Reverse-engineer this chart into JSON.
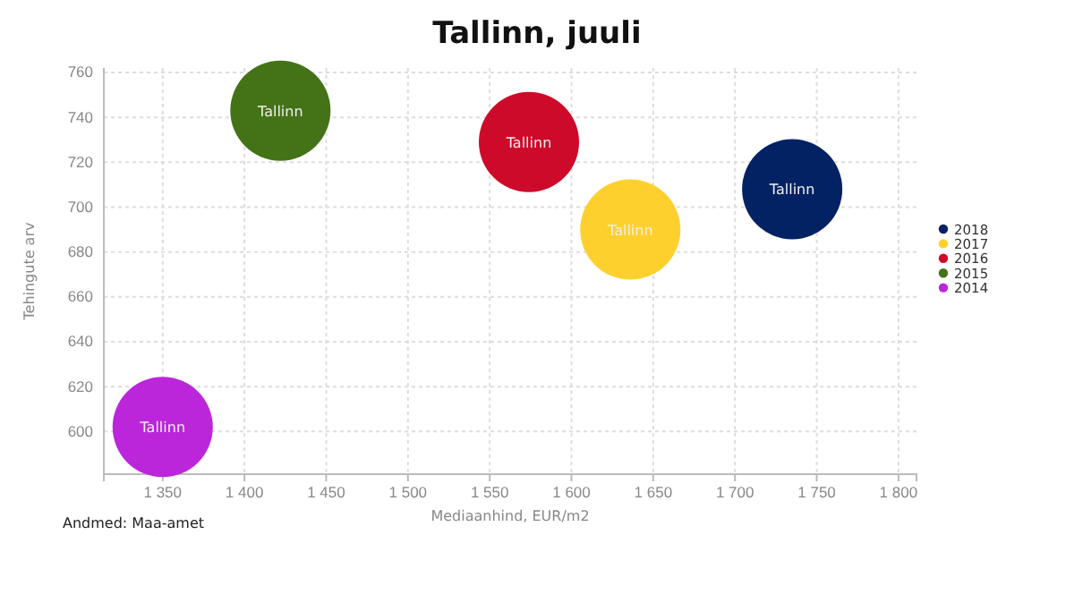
{
  "chart_data": {
    "type": "bubble",
    "title": "Tallinn, juuli",
    "xlabel": "Mediaanhind, EUR/m2",
    "ylabel": "Tehingute arv",
    "annotations": [
      "Andmed: Maa-amet"
    ],
    "xlim": [
      1314,
      1811
    ],
    "xticks": [
      {
        "value": 1350,
        "label": "1 350"
      },
      {
        "value": 1400,
        "label": "1 400"
      },
      {
        "value": 1450,
        "label": "1 450"
      },
      {
        "value": 1500,
        "label": "1 500"
      },
      {
        "value": 1550,
        "label": "1 550"
      },
      {
        "value": 1600,
        "label": "1 600"
      },
      {
        "value": 1650,
        "label": "1 650"
      },
      {
        "value": 1700,
        "label": "1 700"
      },
      {
        "value": 1750,
        "label": "1 750"
      },
      {
        "value": 1800,
        "label": "1 800"
      }
    ],
    "ylim": [
      581,
      762
    ],
    "yticks": [
      600,
      620,
      640,
      660,
      680,
      700,
      720,
      740,
      760
    ],
    "grid": true,
    "legend": "right",
    "series": [
      {
        "name": "2018",
        "color": "#032263",
        "x": [
          1735
        ],
        "values": [
          708
        ],
        "sizes": [
          1
        ],
        "value_labels": [
          "Tallinn"
        ]
      },
      {
        "name": "2017",
        "color": "#fdd02d",
        "x": [
          1636
        ],
        "values": [
          690
        ],
        "sizes": [
          1
        ],
        "value_labels": [
          "Tallinn"
        ]
      },
      {
        "name": "2016",
        "color": "#cd0a29",
        "x": [
          1574
        ],
        "values": [
          729
        ],
        "sizes": [
          1
        ],
        "value_labels": [
          "Tallinn"
        ]
      },
      {
        "name": "2015",
        "color": "#447216",
        "x": [
          1422
        ],
        "values": [
          743
        ],
        "sizes": [
          1
        ],
        "value_labels": [
          "Tallinn"
        ]
      },
      {
        "name": "2014",
        "color": "#bb26da",
        "x": [
          1350
        ],
        "values": [
          602
        ],
        "sizes": [
          1
        ],
        "value_labels": [
          "Tallinn"
        ]
      }
    ]
  }
}
